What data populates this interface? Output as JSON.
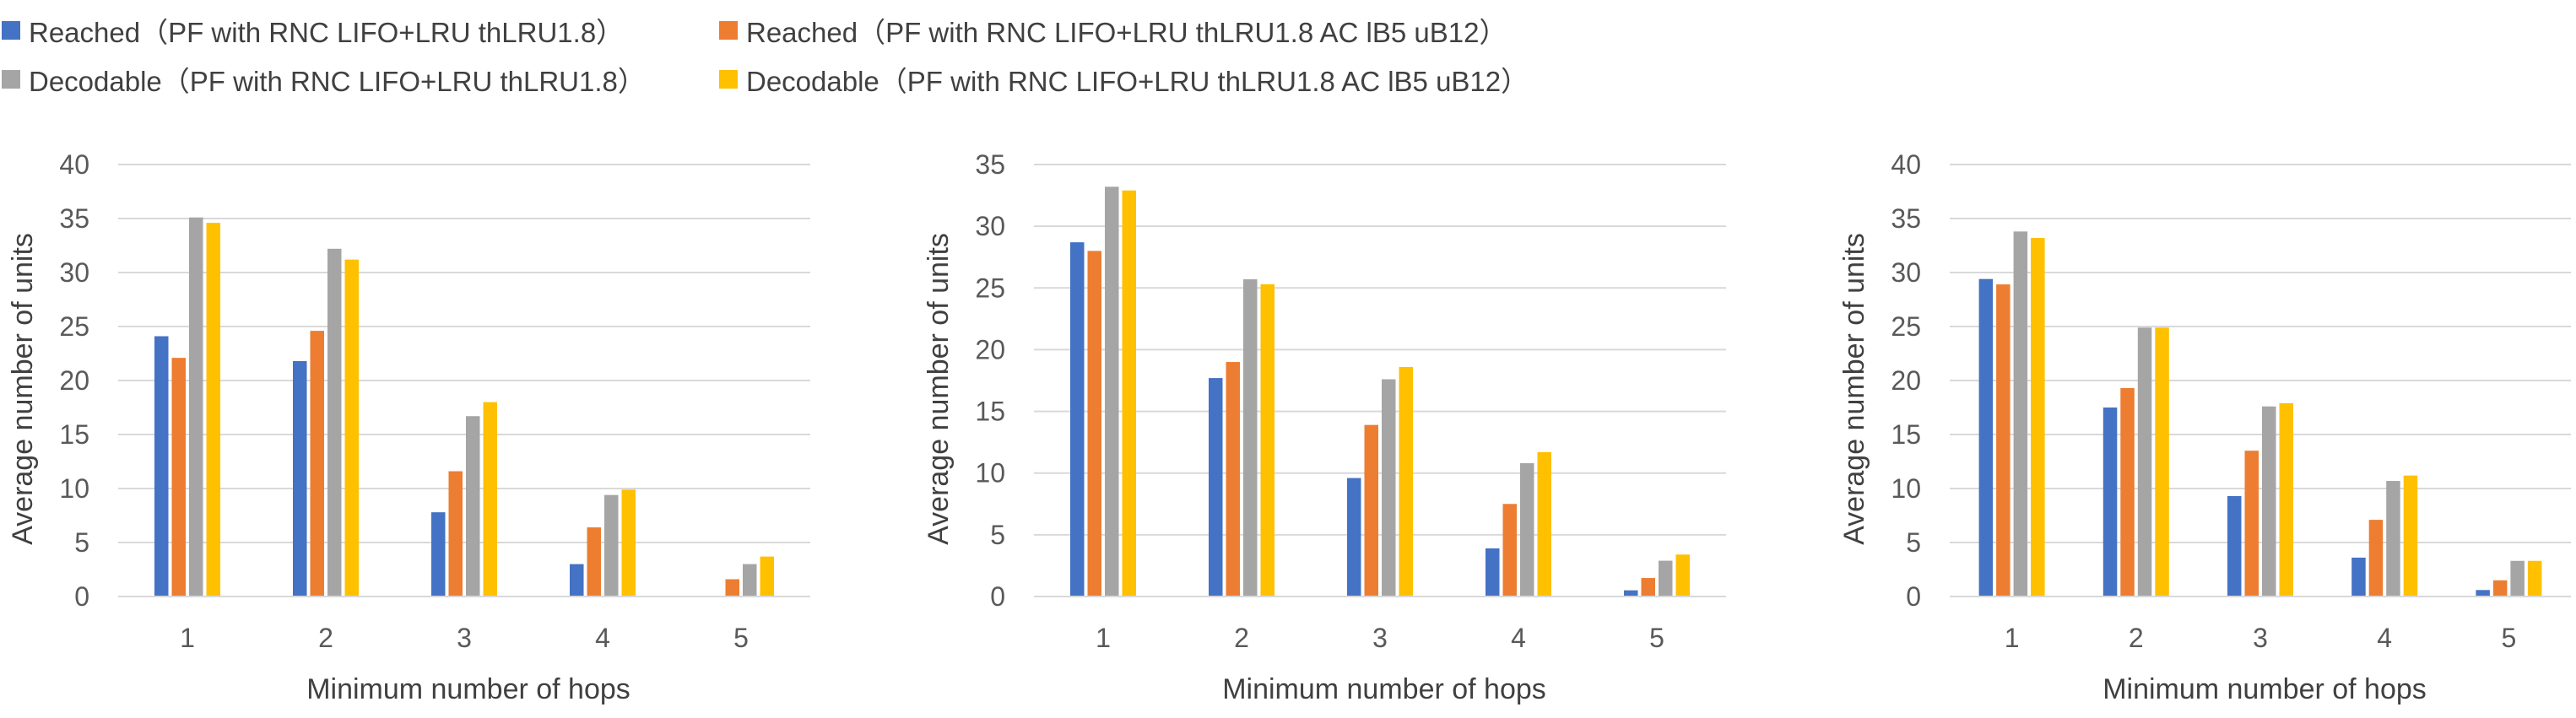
{
  "legend": [
    {
      "label": "Reached（PF with RNC LIFO+LRU thLRU1.8）",
      "color": "#4472C4"
    },
    {
      "label": "Reached（PF with RNC LIFO+LRU thLRU1.8 AC lB5 uB12）",
      "color": "#ED7D31"
    },
    {
      "label": "Decodable（PF with RNC LIFO+LRU thLRU1.8）",
      "color": "#A5A5A5"
    },
    {
      "label": "Decodable（PF with RNC LIFO+LRU thLRU1.8 AC lB5 uB12）",
      "color": "#FFC000"
    }
  ],
  "chart_data": [
    {
      "type": "bar",
      "categories": [
        "1",
        "2",
        "3",
        "4",
        "5"
      ],
      "xlabel": "Minimum number of hops",
      "ylabel": "Average number of units",
      "ylim": [
        0,
        40
      ],
      "yticks": [
        0,
        5,
        10,
        15,
        20,
        25,
        30,
        35,
        40
      ],
      "grid": true,
      "series": [
        {
          "name": "Reached（PF with RNC LIFO+LRU thLRU1.8）",
          "values": [
            24.1,
            21.8,
            7.8,
            3.0,
            0.0
          ]
        },
        {
          "name": "Reached（PF with RNC LIFO+LRU thLRU1.8 AC lB5 uB12）",
          "values": [
            22.1,
            24.6,
            11.6,
            6.4,
            1.6
          ]
        },
        {
          "name": "Decodable（PF with RNC LIFO+LRU thLRU1.8）",
          "values": [
            35.1,
            32.2,
            16.7,
            9.4,
            3.0
          ]
        },
        {
          "name": "Decodable（PF with RNC LIFO+LRU thLRU1.8 AC lB5 uB12）",
          "values": [
            34.6,
            31.2,
            18.0,
            9.9,
            3.7
          ]
        }
      ]
    },
    {
      "type": "bar",
      "categories": [
        "1",
        "2",
        "3",
        "4",
        "5"
      ],
      "xlabel": "Minimum number of hops",
      "ylabel": "Average number of units",
      "ylim": [
        0,
        35
      ],
      "yticks": [
        0,
        5,
        10,
        15,
        20,
        25,
        30,
        35
      ],
      "grid": true,
      "series": [
        {
          "name": "Reached（PF with RNC LIFO+LRU thLRU1.8）",
          "values": [
            28.7,
            17.7,
            9.6,
            3.9,
            0.5
          ]
        },
        {
          "name": "Reached（PF with RNC LIFO+LRU thLRU1.8 AC lB5 uB12）",
          "values": [
            28.0,
            19.0,
            13.9,
            7.5,
            1.5
          ]
        },
        {
          "name": "Decodable（PF with RNC LIFO+LRU thLRU1.8）",
          "values": [
            33.2,
            25.7,
            17.6,
            10.8,
            2.9
          ]
        },
        {
          "name": "Decodable（PF with RNC LIFO+LRU thLRU1.8 AC lB5 uB12）",
          "values": [
            32.9,
            25.3,
            18.6,
            11.7,
            3.4
          ]
        }
      ]
    },
    {
      "type": "bar",
      "categories": [
        "1",
        "2",
        "3",
        "4",
        "5"
      ],
      "xlabel": "Minimum number of hops",
      "ylabel": "Average number of units",
      "ylim": [
        0,
        40
      ],
      "yticks": [
        0,
        5,
        10,
        15,
        20,
        25,
        30,
        35,
        40
      ],
      "grid": true,
      "series": [
        {
          "name": "Reached（PF with RNC LIFO+LRU thLRU1.8）",
          "values": [
            29.4,
            17.5,
            9.3,
            3.6,
            0.6
          ]
        },
        {
          "name": "Reached（PF with RNC LIFO+LRU thLRU1.8 AC lB5 uB12）",
          "values": [
            28.9,
            19.3,
            13.5,
            7.1,
            1.5
          ]
        },
        {
          "name": "Decodable（PF with RNC LIFO+LRU thLRU1.8）",
          "values": [
            33.8,
            24.9,
            17.6,
            10.7,
            3.3
          ]
        },
        {
          "name": "Decodable（PF with RNC LIFO+LRU thLRU1.8 AC lB5 uB12）",
          "values": [
            33.2,
            24.9,
            17.9,
            11.2,
            3.3
          ]
        }
      ]
    }
  ]
}
